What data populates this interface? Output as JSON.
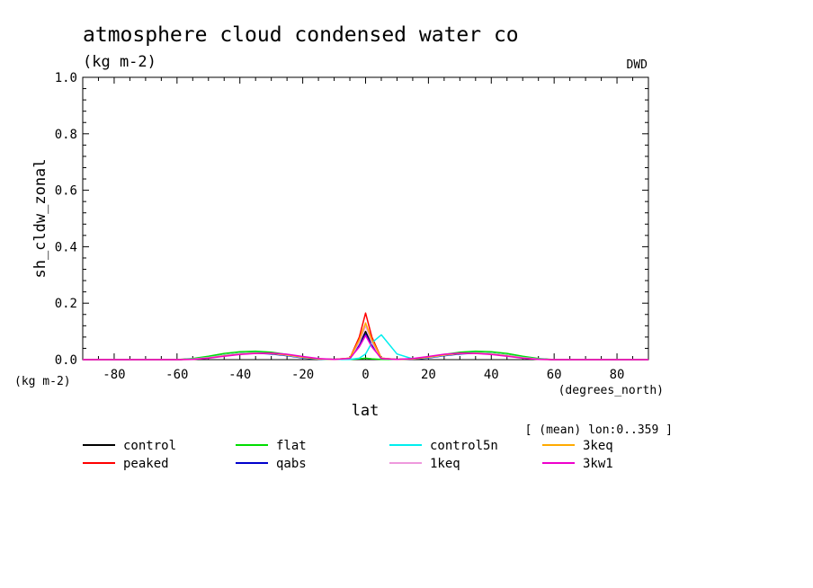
{
  "header": {
    "title": "atmosphere cloud condensed water co",
    "units": "(kg m-2)",
    "source": "DWD"
  },
  "axes": {
    "y_unit_label": "(kg m-2)",
    "x_unit_label": "(degrees_north)",
    "subset_note": "[ (mean) lon:0..359 ]"
  },
  "chart_data": {
    "type": "line",
    "title": "atmosphere cloud condensed water co",
    "xlabel": "lat",
    "ylabel": "sh_cldw_zonal",
    "xlim": [
      -90,
      90
    ],
    "ylim": [
      0,
      1
    ],
    "xticks": [
      -80,
      -60,
      -40,
      -20,
      0,
      20,
      40,
      60,
      80
    ],
    "xtick_labels": [
      "-80",
      "-60",
      "-40",
      "-20",
      "0",
      "20",
      "40",
      "60",
      "80"
    ],
    "yticks": [
      0,
      0.2,
      0.4,
      0.6,
      0.8,
      1.0
    ],
    "ytick_labels": [
      "0.0",
      "0.2",
      "0.4",
      "0.6",
      "0.8",
      "1.0"
    ],
    "x": [
      -90,
      -80,
      -70,
      -60,
      -55,
      -50,
      -45,
      -40,
      -35,
      -30,
      -25,
      -20,
      -15,
      -10,
      -5,
      -2,
      0,
      2,
      5,
      10,
      15,
      20,
      25,
      30,
      35,
      40,
      45,
      50,
      55,
      60,
      70,
      80,
      90
    ],
    "series": [
      {
        "name": "control",
        "color": "#000000",
        "values": [
          0,
          0,
          0,
          0,
          0.002,
          0.008,
          0.016,
          0.022,
          0.025,
          0.022,
          0.015,
          0.007,
          0.002,
          0.001,
          0.003,
          0.05,
          0.1,
          0.05,
          0.003,
          0.001,
          0.002,
          0.007,
          0.015,
          0.022,
          0.025,
          0.022,
          0.016,
          0.008,
          0.002,
          0,
          0,
          0,
          0
        ]
      },
      {
        "name": "peaked",
        "color": "#ff0000",
        "values": [
          0,
          0,
          0,
          0,
          0.002,
          0.007,
          0.014,
          0.02,
          0.023,
          0.021,
          0.015,
          0.007,
          0.002,
          0.001,
          0.005,
          0.08,
          0.165,
          0.08,
          0.005,
          0.001,
          0.002,
          0.007,
          0.015,
          0.021,
          0.023,
          0.02,
          0.014,
          0.007,
          0.002,
          0,
          0,
          0,
          0
        ]
      },
      {
        "name": "flat",
        "color": "#00dd00",
        "values": [
          0,
          0,
          0,
          0,
          0.004,
          0.012,
          0.022,
          0.028,
          0.03,
          0.026,
          0.018,
          0.009,
          0.003,
          0.001,
          0.001,
          0.003,
          0.005,
          0.003,
          0.001,
          0.001,
          0.003,
          0.009,
          0.018,
          0.026,
          0.03,
          0.028,
          0.022,
          0.012,
          0.004,
          0,
          0,
          0,
          0
        ]
      },
      {
        "name": "qabs",
        "color": "#0000cc",
        "values": [
          0,
          0,
          0,
          0,
          0.002,
          0.007,
          0.014,
          0.02,
          0.023,
          0.02,
          0.014,
          0.006,
          0.002,
          0.001,
          0.004,
          0.05,
          0.09,
          0.05,
          0.004,
          0.001,
          0.002,
          0.006,
          0.014,
          0.02,
          0.023,
          0.02,
          0.014,
          0.007,
          0.002,
          0,
          0,
          0,
          0
        ]
      },
      {
        "name": "control5n",
        "color": "#00eeee",
        "values": [
          0,
          0,
          0,
          0,
          0.002,
          0.008,
          0.016,
          0.022,
          0.025,
          0.022,
          0.015,
          0.007,
          0.002,
          0.001,
          0.001,
          0.005,
          0.02,
          0.06,
          0.088,
          0.02,
          0.003,
          0.007,
          0.015,
          0.022,
          0.025,
          0.022,
          0.016,
          0.008,
          0.002,
          0,
          0,
          0,
          0
        ]
      },
      {
        "name": "1keq",
        "color": "#ee99dd",
        "values": [
          0,
          0,
          0,
          0,
          0.002,
          0.007,
          0.015,
          0.021,
          0.024,
          0.022,
          0.016,
          0.008,
          0.003,
          0.001,
          0.004,
          0.06,
          0.12,
          0.06,
          0.004,
          0.001,
          0.003,
          0.008,
          0.016,
          0.022,
          0.024,
          0.021,
          0.015,
          0.007,
          0.002,
          0,
          0,
          0,
          0
        ]
      },
      {
        "name": "3keq",
        "color": "#ffaa00",
        "values": [
          0,
          0,
          0,
          0,
          0.001,
          0.006,
          0.013,
          0.019,
          0.023,
          0.022,
          0.017,
          0.009,
          0.003,
          0.001,
          0.005,
          0.07,
          0.13,
          0.07,
          0.005,
          0.001,
          0.003,
          0.009,
          0.017,
          0.022,
          0.023,
          0.019,
          0.013,
          0.006,
          0.001,
          0,
          0,
          0,
          0
        ]
      },
      {
        "name": "3kw1",
        "color": "#ee00cc",
        "values": [
          0,
          0,
          0,
          0,
          0.001,
          0.005,
          0.012,
          0.018,
          0.022,
          0.023,
          0.019,
          0.011,
          0.004,
          0.001,
          0.004,
          0.045,
          0.085,
          0.045,
          0.004,
          0.001,
          0.004,
          0.011,
          0.019,
          0.023,
          0.022,
          0.018,
          0.012,
          0.005,
          0.001,
          0,
          0,
          0,
          0
        ]
      }
    ],
    "legend_position": "bottom",
    "grid": false
  }
}
